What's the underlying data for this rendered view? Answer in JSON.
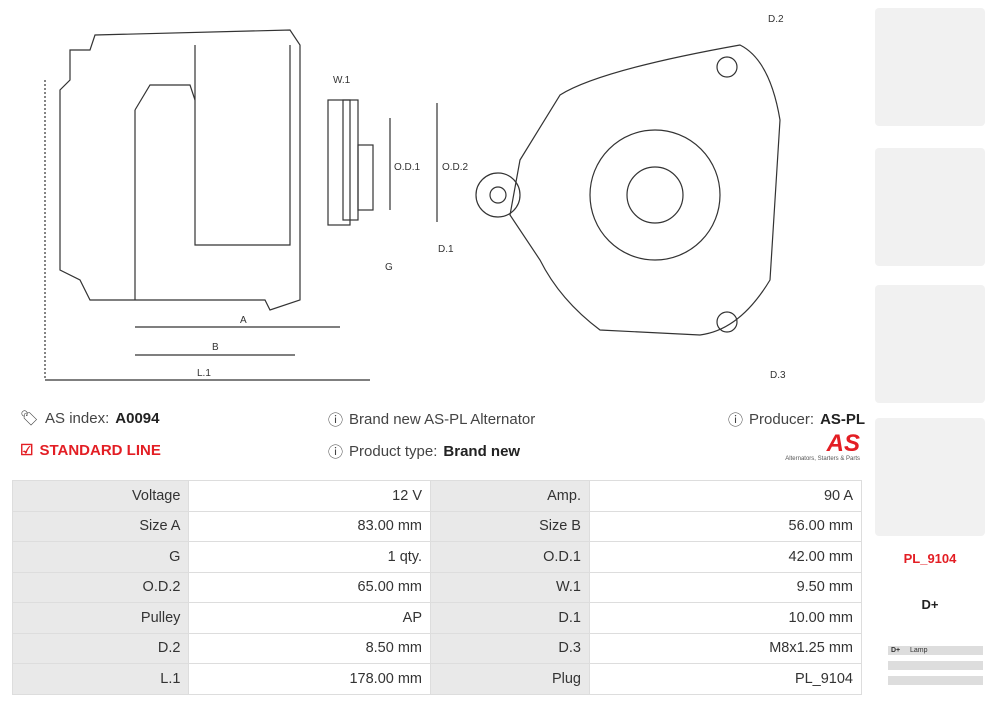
{
  "drawing": {
    "labels": {
      "w1": "W.1",
      "od1": "O.D.1",
      "od2": "O.D.2",
      "g": "G",
      "a": "A",
      "b": "B",
      "l1": "L.1",
      "d1": "D.1",
      "d2": "D.2",
      "d3": "D.3"
    }
  },
  "info": {
    "as_index_label": "AS index:",
    "as_index_value": "A0094",
    "line": "STANDARD LINE",
    "title": "Brand new AS-PL Alternator",
    "product_type_label": "Product type:",
    "product_type_value": "Brand new",
    "producer_label": "Producer:",
    "producer_value": "AS-PL",
    "logo_text": "AS",
    "logo_tagline": "Alternators, Starters & Parts"
  },
  "specs": [
    [
      "Voltage",
      "12 V",
      "Amp.",
      "90 A"
    ],
    [
      "Size A",
      "83.00 mm",
      "Size B",
      "56.00 mm"
    ],
    [
      "G",
      "1 qty.",
      "O.D.1",
      "42.00 mm"
    ],
    [
      "O.D.2",
      "65.00 mm",
      "W.1",
      "9.50 mm"
    ],
    [
      "Pulley",
      "AP",
      "D.1",
      "10.00 mm"
    ],
    [
      "D.2",
      "8.50 mm",
      "D.3",
      "M8x1.25 mm"
    ],
    [
      "L.1",
      "178.00 mm",
      "Plug",
      "PL_9104"
    ]
  ],
  "plug": {
    "code": "PL_9104",
    "terminal": "D+",
    "rows": [
      [
        "D+",
        "Lamp"
      ],
      [
        "",
        ""
      ],
      [
        "",
        ""
      ]
    ]
  },
  "colors": {
    "accent": "#e31e24"
  }
}
